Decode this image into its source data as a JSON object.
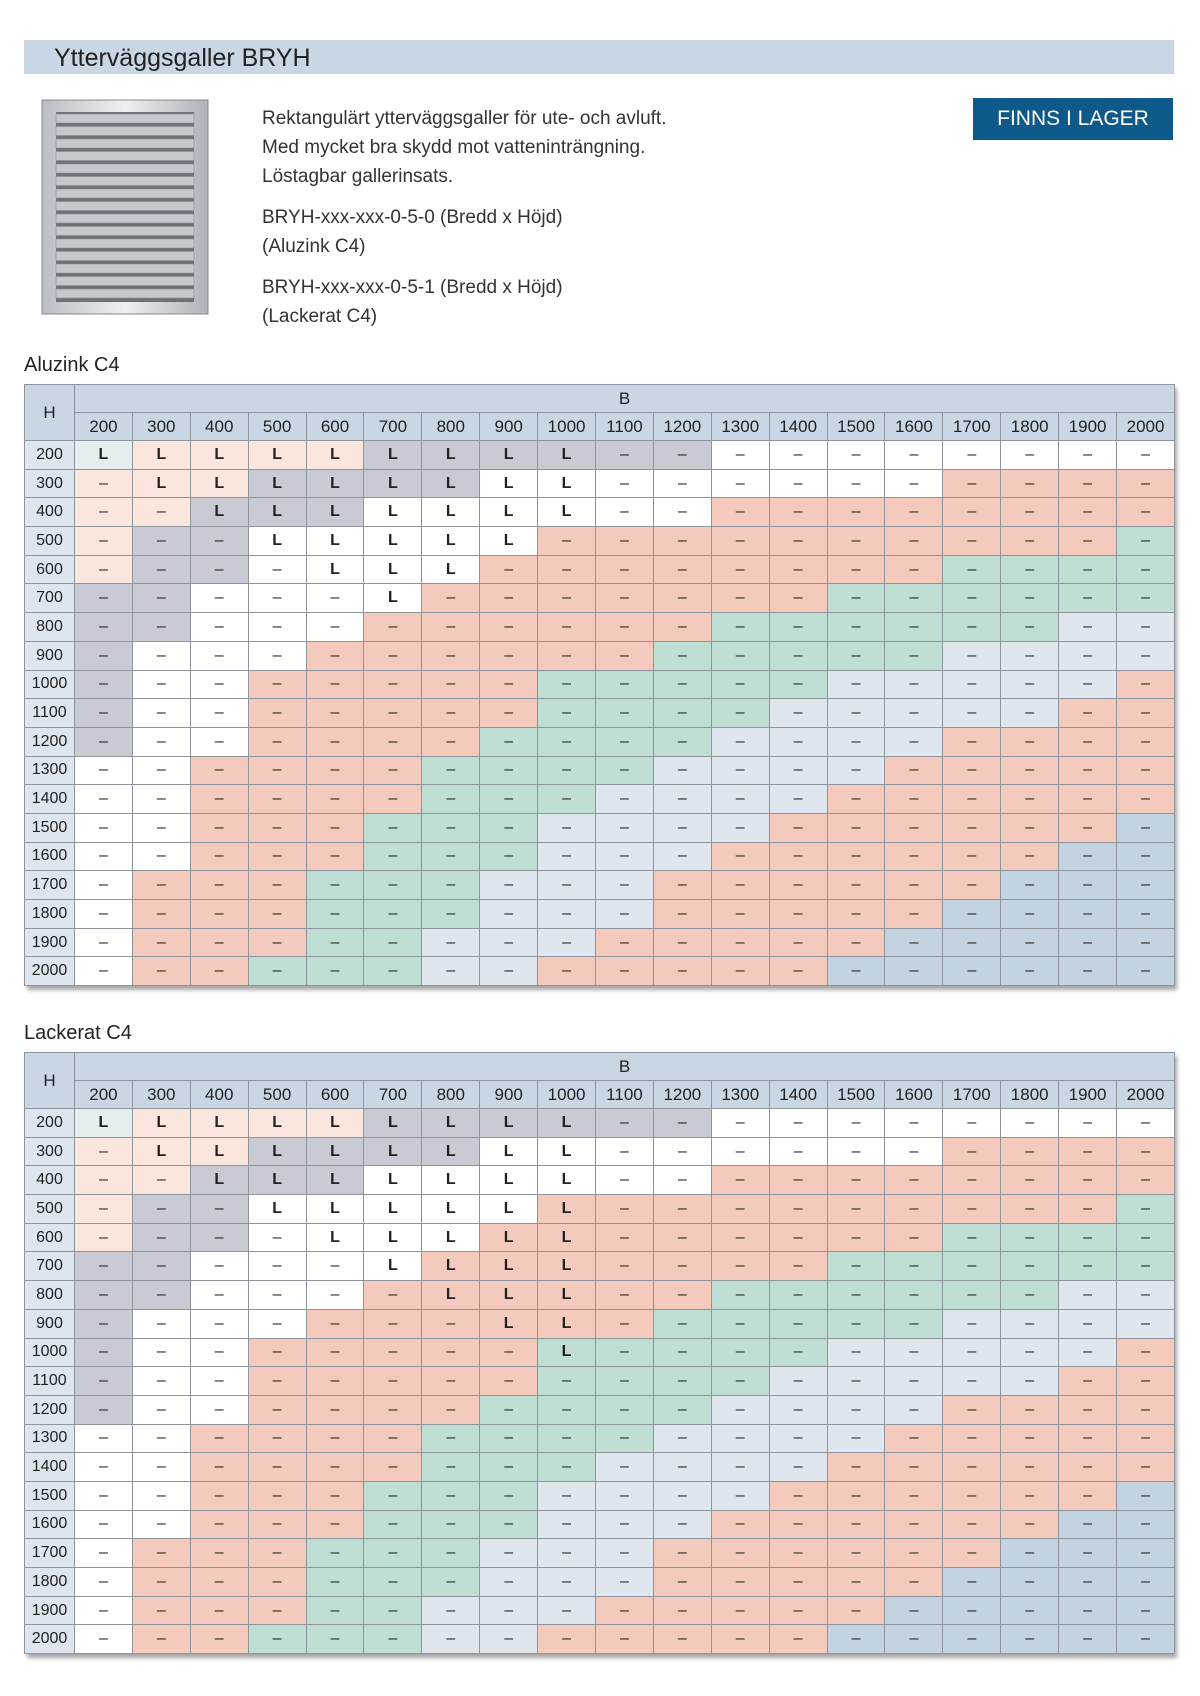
{
  "header": {
    "title": "Ytterväggsgaller BRYH"
  },
  "badge": "FINNS I LAGER",
  "product": {
    "description": [
      "Rektangulärt ytterväggsgaller för ute- och avluft.",
      "Med mycket bra skydd mot vatteninträngning.",
      "Löstagbar gallerinsats."
    ],
    "variants": [
      [
        "BRYH-xxx-xxx-0-5-0 (Bredd x Höjd)",
        "(Aluzink C4)"
      ],
      [
        "BRYH-xxx-xxx-0-5-1 (Bredd x Höjd)",
        "(Lackerat C4)"
      ]
    ]
  },
  "tables": [
    {
      "title": "Aluzink C4",
      "corner_label": "H",
      "column_group": "B",
      "columns": [
        200,
        300,
        400,
        500,
        600,
        700,
        800,
        900,
        1000,
        1100,
        1200,
        1300,
        1400,
        1500,
        1600,
        1700,
        1800,
        1900,
        2000
      ],
      "rows": [
        {
          "h": 200,
          "cells": [
            "L",
            "L",
            "L",
            "L",
            "L",
            "L",
            "L",
            "L",
            "L",
            "–",
            "–",
            "–",
            "–",
            "–",
            "–",
            "–",
            "–",
            "–",
            "–"
          ]
        },
        {
          "h": 300,
          "cells": [
            "–",
            "L",
            "L",
            "L",
            "L",
            "L",
            "L",
            "L",
            "L",
            "–",
            "–",
            "–",
            "–",
            "–",
            "–",
            "–",
            "–",
            "–",
            "–"
          ]
        },
        {
          "h": 400,
          "cells": [
            "–",
            "–",
            "L",
            "L",
            "L",
            "L",
            "L",
            "L",
            "L",
            "–",
            "–",
            "–",
            "–",
            "–",
            "–",
            "–",
            "–",
            "–",
            "–"
          ]
        },
        {
          "h": 500,
          "cells": [
            "–",
            "–",
            "–",
            "L",
            "L",
            "L",
            "L",
            "L",
            "–",
            "–",
            "–",
            "–",
            "–",
            "–",
            "–",
            "–",
            "–",
            "–",
            "–"
          ]
        },
        {
          "h": 600,
          "cells": [
            "–",
            "–",
            "–",
            "–",
            "L",
            "L",
            "L",
            "–",
            "–",
            "–",
            "–",
            "–",
            "–",
            "–",
            "–",
            "–",
            "–",
            "–",
            "–"
          ]
        },
        {
          "h": 700,
          "cells": [
            "–",
            "–",
            "–",
            "–",
            "–",
            "L",
            "–",
            "–",
            "–",
            "–",
            "–",
            "–",
            "–",
            "–",
            "–",
            "–",
            "–",
            "–",
            "–"
          ]
        },
        {
          "h": 800,
          "cells": [
            "–",
            "–",
            "–",
            "–",
            "–",
            "–",
            "–",
            "–",
            "–",
            "–",
            "–",
            "–",
            "–",
            "–",
            "–",
            "–",
            "–",
            "–",
            "–"
          ]
        },
        {
          "h": 900,
          "cells": [
            "–",
            "–",
            "–",
            "–",
            "–",
            "–",
            "–",
            "–",
            "–",
            "–",
            "–",
            "–",
            "–",
            "–",
            "–",
            "–",
            "–",
            "–",
            "–"
          ]
        },
        {
          "h": 1000,
          "cells": [
            "–",
            "–",
            "–",
            "–",
            "–",
            "–",
            "–",
            "–",
            "–",
            "–",
            "–",
            "–",
            "–",
            "–",
            "–",
            "–",
            "–",
            "–",
            "–"
          ]
        },
        {
          "h": 1100,
          "cells": [
            "–",
            "–",
            "–",
            "–",
            "–",
            "–",
            "–",
            "–",
            "–",
            "–",
            "–",
            "–",
            "–",
            "–",
            "–",
            "–",
            "–",
            "–",
            "–"
          ]
        },
        {
          "h": 1200,
          "cells": [
            "–",
            "–",
            "–",
            "–",
            "–",
            "–",
            "–",
            "–",
            "–",
            "–",
            "–",
            "–",
            "–",
            "–",
            "–",
            "–",
            "–",
            "–",
            "–"
          ]
        },
        {
          "h": 1300,
          "cells": [
            "–",
            "–",
            "–",
            "–",
            "–",
            "–",
            "–",
            "–",
            "–",
            "–",
            "–",
            "–",
            "–",
            "–",
            "–",
            "–",
            "–",
            "–",
            "–"
          ]
        },
        {
          "h": 1400,
          "cells": [
            "–",
            "–",
            "–",
            "–",
            "–",
            "–",
            "–",
            "–",
            "–",
            "–",
            "–",
            "–",
            "–",
            "–",
            "–",
            "–",
            "–",
            "–",
            "–"
          ]
        },
        {
          "h": 1500,
          "cells": [
            "–",
            "–",
            "–",
            "–",
            "–",
            "–",
            "–",
            "–",
            "–",
            "–",
            "–",
            "–",
            "–",
            "–",
            "–",
            "–",
            "–",
            "–",
            "–"
          ]
        },
        {
          "h": 1600,
          "cells": [
            "–",
            "–",
            "–",
            "–",
            "–",
            "–",
            "–",
            "–",
            "–",
            "–",
            "–",
            "–",
            "–",
            "–",
            "–",
            "–",
            "–",
            "–",
            "–"
          ]
        },
        {
          "h": 1700,
          "cells": [
            "–",
            "–",
            "–",
            "–",
            "–",
            "–",
            "–",
            "–",
            "–",
            "–",
            "–",
            "–",
            "–",
            "–",
            "–",
            "–",
            "–",
            "–",
            "–"
          ]
        },
        {
          "h": 1800,
          "cells": [
            "–",
            "–",
            "–",
            "–",
            "–",
            "–",
            "–",
            "–",
            "–",
            "–",
            "–",
            "–",
            "–",
            "–",
            "–",
            "–",
            "–",
            "–",
            "–"
          ]
        },
        {
          "h": 1900,
          "cells": [
            "–",
            "–",
            "–",
            "–",
            "–",
            "–",
            "–",
            "–",
            "–",
            "–",
            "–",
            "–",
            "–",
            "–",
            "–",
            "–",
            "–",
            "–",
            "–"
          ]
        },
        {
          "h": 2000,
          "cells": [
            "–",
            "–",
            "–",
            "–",
            "–",
            "–",
            "–",
            "–",
            "–",
            "–",
            "–",
            "–",
            "–",
            "–",
            "–",
            "–",
            "–",
            "–",
            "–"
          ]
        }
      ]
    },
    {
      "title": "Lackerat C4",
      "corner_label": "H",
      "column_group": "B",
      "columns": [
        200,
        300,
        400,
        500,
        600,
        700,
        800,
        900,
        1000,
        1100,
        1200,
        1300,
        1400,
        1500,
        1600,
        1700,
        1800,
        1900,
        2000
      ],
      "rows": [
        {
          "h": 200,
          "cells": [
            "L",
            "L",
            "L",
            "L",
            "L",
            "L",
            "L",
            "L",
            "L",
            "–",
            "–",
            "–",
            "–",
            "–",
            "–",
            "–",
            "–",
            "–",
            "–"
          ]
        },
        {
          "h": 300,
          "cells": [
            "–",
            "L",
            "L",
            "L",
            "L",
            "L",
            "L",
            "L",
            "L",
            "–",
            "–",
            "–",
            "–",
            "–",
            "–",
            "–",
            "–",
            "–",
            "–"
          ]
        },
        {
          "h": 400,
          "cells": [
            "–",
            "–",
            "L",
            "L",
            "L",
            "L",
            "L",
            "L",
            "L",
            "–",
            "–",
            "–",
            "–",
            "–",
            "–",
            "–",
            "–",
            "–",
            "–"
          ]
        },
        {
          "h": 500,
          "cells": [
            "–",
            "–",
            "–",
            "L",
            "L",
            "L",
            "L",
            "L",
            "L",
            "–",
            "–",
            "–",
            "–",
            "–",
            "–",
            "–",
            "–",
            "–",
            "–"
          ]
        },
        {
          "h": 600,
          "cells": [
            "–",
            "–",
            "–",
            "–",
            "L",
            "L",
            "L",
            "L",
            "L",
            "–",
            "–",
            "–",
            "–",
            "–",
            "–",
            "–",
            "–",
            "–",
            "–"
          ]
        },
        {
          "h": 700,
          "cells": [
            "–",
            "–",
            "–",
            "–",
            "–",
            "L",
            "L",
            "L",
            "L",
            "–",
            "–",
            "–",
            "–",
            "–",
            "–",
            "–",
            "–",
            "–",
            "–"
          ]
        },
        {
          "h": 800,
          "cells": [
            "–",
            "–",
            "–",
            "–",
            "–",
            "–",
            "L",
            "L",
            "L",
            "–",
            "–",
            "–",
            "–",
            "–",
            "–",
            "–",
            "–",
            "–",
            "–"
          ]
        },
        {
          "h": 900,
          "cells": [
            "–",
            "–",
            "–",
            "–",
            "–",
            "–",
            "–",
            "L",
            "L",
            "–",
            "–",
            "–",
            "–",
            "–",
            "–",
            "–",
            "–",
            "–",
            "–"
          ]
        },
        {
          "h": 1000,
          "cells": [
            "–",
            "–",
            "–",
            "–",
            "–",
            "–",
            "–",
            "–",
            "L",
            "–",
            "–",
            "–",
            "–",
            "–",
            "–",
            "–",
            "–",
            "–",
            "–"
          ]
        },
        {
          "h": 1100,
          "cells": [
            "–",
            "–",
            "–",
            "–",
            "–",
            "–",
            "–",
            "–",
            "–",
            "–",
            "–",
            "–",
            "–",
            "–",
            "–",
            "–",
            "–",
            "–",
            "–"
          ]
        },
        {
          "h": 1200,
          "cells": [
            "–",
            "–",
            "–",
            "–",
            "–",
            "–",
            "–",
            "–",
            "–",
            "–",
            "–",
            "–",
            "–",
            "–",
            "–",
            "–",
            "–",
            "–",
            "–"
          ]
        },
        {
          "h": 1300,
          "cells": [
            "–",
            "–",
            "–",
            "–",
            "–",
            "–",
            "–",
            "–",
            "–",
            "–",
            "–",
            "–",
            "–",
            "–",
            "–",
            "–",
            "–",
            "–",
            "–"
          ]
        },
        {
          "h": 1400,
          "cells": [
            "–",
            "–",
            "–",
            "–",
            "–",
            "–",
            "–",
            "–",
            "–",
            "–",
            "–",
            "–",
            "–",
            "–",
            "–",
            "–",
            "–",
            "–",
            "–"
          ]
        },
        {
          "h": 1500,
          "cells": [
            "–",
            "–",
            "–",
            "–",
            "–",
            "–",
            "–",
            "–",
            "–",
            "–",
            "–",
            "–",
            "–",
            "–",
            "–",
            "–",
            "–",
            "–",
            "–"
          ]
        },
        {
          "h": 1600,
          "cells": [
            "–",
            "–",
            "–",
            "–",
            "–",
            "–",
            "–",
            "–",
            "–",
            "–",
            "–",
            "–",
            "–",
            "–",
            "–",
            "–",
            "–",
            "–",
            "–"
          ]
        },
        {
          "h": 1700,
          "cells": [
            "–",
            "–",
            "–",
            "–",
            "–",
            "–",
            "–",
            "–",
            "–",
            "–",
            "–",
            "–",
            "–",
            "–",
            "–",
            "–",
            "–",
            "–",
            "–"
          ]
        },
        {
          "h": 1800,
          "cells": [
            "–",
            "–",
            "–",
            "–",
            "–",
            "–",
            "–",
            "–",
            "–",
            "–",
            "–",
            "–",
            "–",
            "–",
            "–",
            "–",
            "–",
            "–",
            "–"
          ]
        },
        {
          "h": 1900,
          "cells": [
            "–",
            "–",
            "–",
            "–",
            "–",
            "–",
            "–",
            "–",
            "–",
            "–",
            "–",
            "–",
            "–",
            "–",
            "–",
            "–",
            "–",
            "–",
            "–"
          ]
        },
        {
          "h": 2000,
          "cells": [
            "–",
            "–",
            "–",
            "–",
            "–",
            "–",
            "–",
            "–",
            "–",
            "–",
            "–",
            "–",
            "–",
            "–",
            "–",
            "–",
            "–",
            "–",
            "–"
          ]
        }
      ]
    }
  ]
}
